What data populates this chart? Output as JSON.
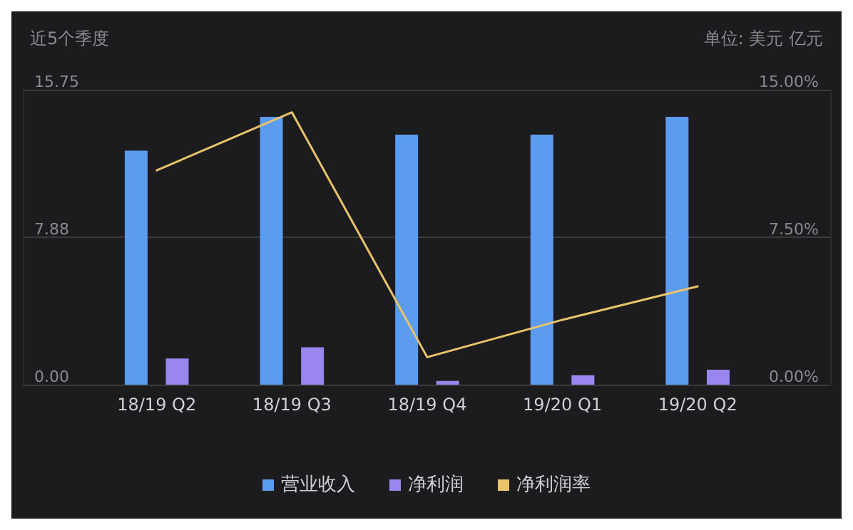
{
  "chart_data": {
    "type": "bar",
    "title": "近5个季度",
    "subtitle": "单位: 美元 亿元",
    "categories": [
      "18/19 Q2",
      "18/19 Q3",
      "18/19 Q4",
      "19/20 Q1",
      "19/20 Q2"
    ],
    "series": [
      {
        "name": "营业收入",
        "color": "#5b9cf0",
        "values": [
          12.5,
          14.3,
          13.35,
          13.35,
          14.3
        ]
      },
      {
        "name": "净利润",
        "color": "#9b86f0",
        "values": [
          1.4,
          2.0,
          0.2,
          0.5,
          0.8
        ]
      },
      {
        "name": "净利润率",
        "type": "line",
        "axis": "y2",
        "color": "#e8c36a",
        "values": [
          10.9,
          13.85,
          1.4,
          3.3,
          5.0
        ]
      }
    ],
    "ylim": [
      0,
      15.75
    ],
    "yticks": [
      {
        "value": 0,
        "label": "0.00"
      },
      {
        "value": 7.875,
        "label": "7.88"
      },
      {
        "value": 15.75,
        "label": "15.75"
      }
    ],
    "y2lim": [
      0,
      15
    ],
    "y2ticks": [
      {
        "value": 0,
        "label": "0.00%"
      },
      {
        "value": 7.5,
        "label": "7.50%"
      },
      {
        "value": 15,
        "label": "15.00%"
      }
    ],
    "grid": "y",
    "legend": "bottom",
    "marker": "none",
    "line_style": "solid"
  }
}
